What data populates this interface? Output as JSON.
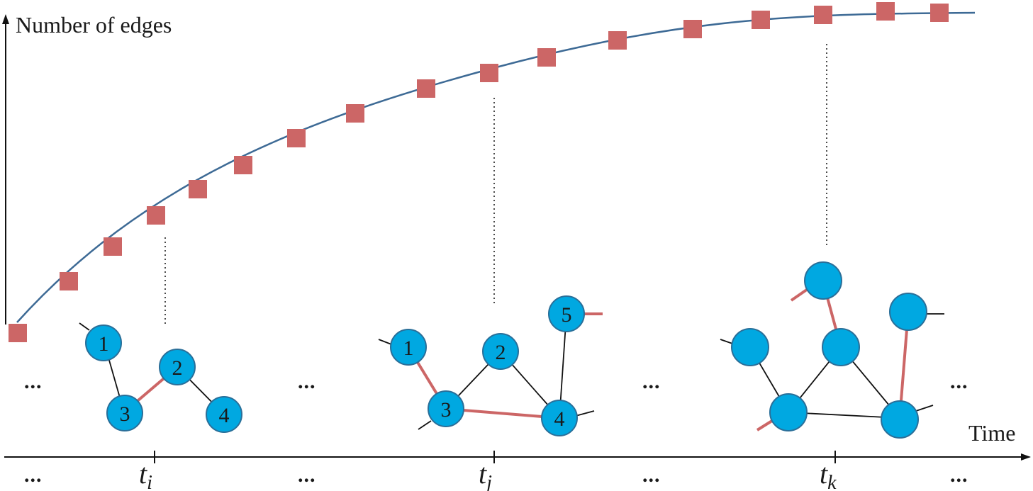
{
  "y_axis_label": "Number of edges",
  "x_axis_label": "Time",
  "ellipsis": "...",
  "time_ticks": [
    {
      "main": "t",
      "sub": "i"
    },
    {
      "main": "t",
      "sub": "j"
    },
    {
      "main": "t",
      "sub": "k"
    }
  ],
  "colors": {
    "curve": "#3d6a95",
    "marker": "#cc6666",
    "node_fill": "#00a8e1",
    "node_stroke": "#2a6f99",
    "new_edge": "#cc6666",
    "edge": "#111111",
    "axis": "#111111"
  },
  "graphs": [
    {
      "name": "graph-ti",
      "nodes": [
        "1",
        "2",
        "3",
        "4"
      ],
      "edges": [
        [
          "1",
          "3",
          "old"
        ],
        [
          "3",
          "2",
          "new"
        ],
        [
          "2",
          "4",
          "old"
        ]
      ]
    },
    {
      "name": "graph-tj",
      "nodes": [
        "1",
        "2",
        "3",
        "4",
        "5"
      ],
      "edges": [
        [
          "1",
          "3",
          "new"
        ],
        [
          "3",
          "2",
          "old"
        ],
        [
          "2",
          "4",
          "old"
        ],
        [
          "3",
          "4",
          "new"
        ],
        [
          "5",
          "4",
          "old"
        ]
      ]
    },
    {
      "name": "graph-tk",
      "nodes": [
        "",
        "",
        "",
        "",
        "",
        ""
      ],
      "edges": [
        [
          "a",
          "c",
          "old"
        ],
        [
          "b",
          "d",
          "new"
        ],
        [
          "c",
          "d",
          "old"
        ],
        [
          "d",
          "e",
          "old"
        ],
        [
          "c",
          "e",
          "old"
        ],
        [
          "f",
          "e",
          "new"
        ]
      ]
    }
  ]
}
